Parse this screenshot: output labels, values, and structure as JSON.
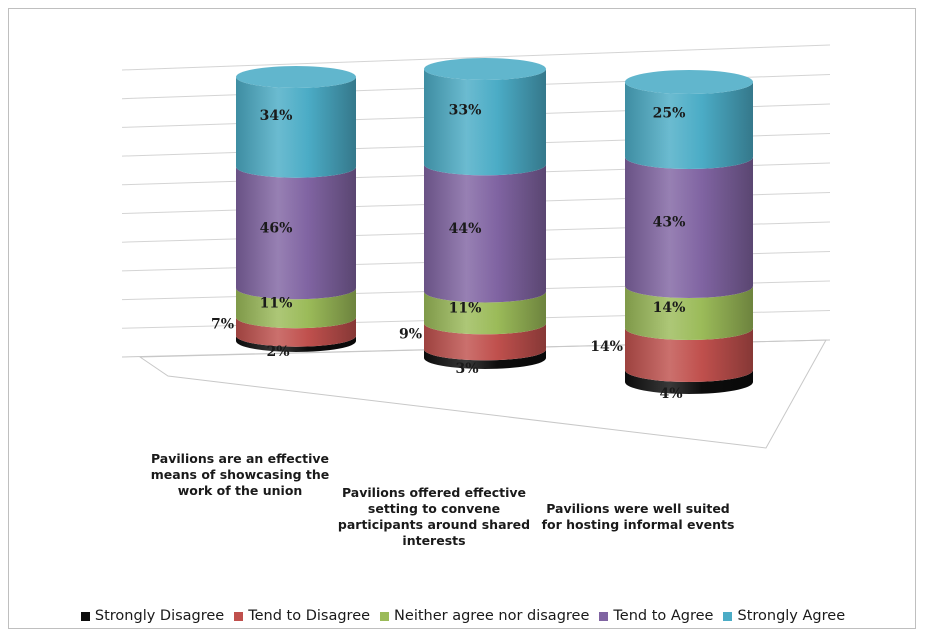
{
  "chart_data": {
    "type": "bar",
    "stacked": true,
    "style": "3d-cylinder",
    "unit": "%",
    "categories": [
      "Pavilions are an effective means of showcasing the work of the union",
      "Pavilions offered effective setting to convene participants around shared interests",
      "Pavilions were well suited for hosting informal events"
    ],
    "category_lines": [
      [
        "Pavilions are an effective",
        "means of showcasing the",
        "work of the union"
      ],
      [
        "Pavilions offered effective",
        "setting to convene",
        "participants around shared",
        "interests"
      ],
      [
        "Pavilions were well suited",
        "for hosting informal events"
      ]
    ],
    "series": [
      {
        "name": "Strongly Disagree",
        "color": "#0d0d0d",
        "values": [
          2,
          3,
          4
        ],
        "labels": [
          "2%",
          "3%",
          "4%"
        ]
      },
      {
        "name": "Tend to Disagree",
        "color": "#c0504d",
        "values": [
          7,
          9,
          14
        ],
        "labels": [
          "7%",
          "9%",
          "14%"
        ]
      },
      {
        "name": "Neither agree nor disagree",
        "color": "#9bbb59",
        "values": [
          11,
          11,
          14
        ],
        "labels": [
          "11%",
          "11%",
          "14%"
        ]
      },
      {
        "name": "Tend to Agree",
        "color": "#8064a2",
        "values": [
          46,
          44,
          43
        ],
        "labels": [
          "46%",
          "44%",
          "43%"
        ]
      },
      {
        "name": "Strongly Agree",
        "color": "#4bacc6",
        "values": [
          34,
          33,
          25
        ],
        "labels": [
          "34%",
          "33%",
          "25%"
        ]
      }
    ],
    "ylim": [
      0,
      100
    ],
    "grid": true,
    "legend": "bottom"
  }
}
